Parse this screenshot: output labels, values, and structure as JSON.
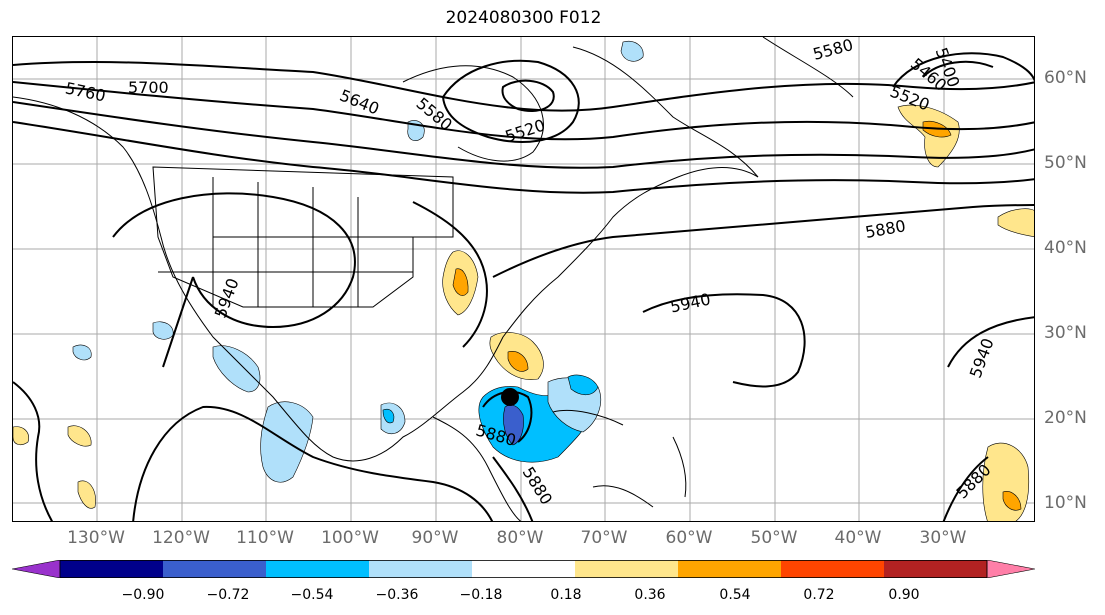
{
  "title": "2024080300 F012",
  "lat_labels": [
    "60°N",
    "50°N",
    "40°N",
    "30°N",
    "20°N",
    "10°N"
  ],
  "lon_labels": [
    "130°W",
    "120°W",
    "110°W",
    "100°W",
    "90°W",
    "80°W",
    "70°W",
    "60°W",
    "50°W",
    "40°W",
    "30°W"
  ],
  "contour_labels": [
    "5760",
    "5700",
    "5640",
    "5580",
    "5520",
    "5580",
    "5400",
    "5460",
    "5520",
    "5880",
    "5940",
    "5940",
    "5940",
    "5880",
    "5880",
    "5880"
  ],
  "colorbar": {
    "tick_labels": [
      "−0.90",
      "−0.72",
      "−0.54",
      "−0.36",
      "−0.18",
      "0.18",
      "0.36",
      "0.54",
      "0.72",
      "0.90"
    ],
    "colors": [
      "#9932cc",
      "#00008b",
      "#3a5fcd",
      "#00bfff",
      "#b0e0fa",
      "#ffffff",
      "#ffe68c",
      "#ffa500",
      "#ff4500",
      "#b22222",
      "#ff7fa8"
    ]
  },
  "map_colors": {
    "coast": "#000000",
    "contour": "#000000",
    "grid": "#aaaaaa",
    "storm_marker": "#000000"
  }
}
